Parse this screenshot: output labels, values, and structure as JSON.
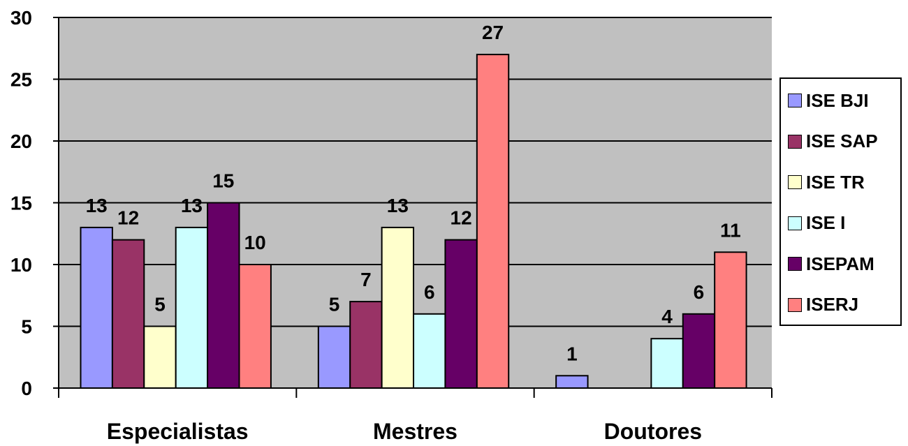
{
  "chart_data": {
    "type": "bar",
    "categories": [
      "Especialistas",
      "Mestres",
      "Doutores"
    ],
    "series": [
      {
        "name": "ISE BJI",
        "color": "#9999FF",
        "values": [
          13,
          5,
          1
        ]
      },
      {
        "name": "ISE SAP",
        "color": "#993366",
        "values": [
          12,
          7,
          null
        ]
      },
      {
        "name": "ISE TR",
        "color": "#FFFFCC",
        "values": [
          5,
          13,
          null
        ]
      },
      {
        "name": "ISE I",
        "color": "#CCFFFF",
        "values": [
          13,
          6,
          4
        ]
      },
      {
        "name": "ISEPAM",
        "color": "#660066",
        "values": [
          15,
          12,
          6
        ]
      },
      {
        "name": "ISERJ",
        "color": "#FF8080",
        "values": [
          10,
          27,
          11
        ]
      }
    ],
    "yticks": [
      0,
      5,
      10,
      15,
      20,
      25,
      30
    ],
    "ylim": [
      0,
      30
    ],
    "grid": true,
    "plot_background": "#C0C0C0",
    "legend_position": "right",
    "data_labels": true,
    "title": "",
    "xlabel": "",
    "ylabel": ""
  }
}
